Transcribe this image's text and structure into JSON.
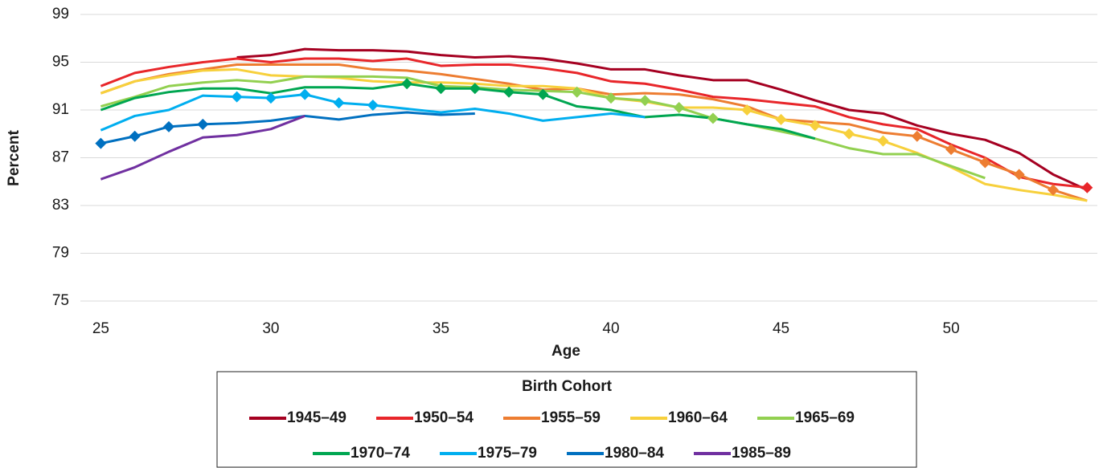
{
  "chart_data": {
    "type": "line",
    "x_label": "Age",
    "y_label": "Percent",
    "legend_title": "Birth Cohort",
    "x": [
      25,
      26,
      27,
      28,
      29,
      30,
      31,
      32,
      33,
      34,
      35,
      36,
      37,
      38,
      39,
      40,
      41,
      42,
      43,
      44,
      45,
      46,
      47,
      48,
      49,
      50,
      51,
      52,
      53,
      54
    ],
    "xlim": [
      24.4,
      54.3
    ],
    "xticks": [
      25,
      30,
      35,
      40,
      45,
      50
    ],
    "ylim": [
      75,
      99
    ],
    "yticks": [
      75,
      79,
      83,
      87,
      91,
      95,
      99
    ],
    "grid": true,
    "series": [
      {
        "name": "1945–49",
        "color": "#a50021",
        "values": [
          null,
          null,
          null,
          null,
          95.4,
          95.6,
          96.1,
          96.0,
          96.0,
          95.9,
          95.6,
          95.4,
          95.5,
          95.3,
          94.9,
          94.4,
          94.4,
          93.9,
          93.5,
          93.5,
          92.7,
          91.8,
          91.0,
          90.7,
          89.7,
          89.0,
          88.5,
          87.4,
          85.6,
          84.3
        ],
        "marker_x": []
      },
      {
        "name": "1950–54",
        "color": "#e8262a",
        "values": [
          93.0,
          94.1,
          94.6,
          95.0,
          95.3,
          95.0,
          95.3,
          95.3,
          95.1,
          95.3,
          94.7,
          94.8,
          94.8,
          94.5,
          94.1,
          93.4,
          93.2,
          92.7,
          92.1,
          91.9,
          91.6,
          91.3,
          90.4,
          89.8,
          89.4,
          88.1,
          87.0,
          85.4,
          84.8,
          84.5
        ],
        "marker_x": [
          54
        ]
      },
      {
        "name": "1955–59",
        "color": "#ed7d31",
        "values": [
          92.4,
          93.4,
          94.0,
          94.4,
          94.8,
          94.8,
          94.8,
          94.8,
          94.4,
          94.3,
          94.0,
          93.6,
          93.2,
          92.7,
          92.8,
          92.3,
          92.4,
          92.3,
          91.9,
          91.3,
          90.2,
          90.0,
          89.8,
          89.1,
          88.8,
          87.7,
          86.6,
          85.6,
          84.3,
          83.4
        ],
        "marker_x": [
          49,
          50,
          51,
          52,
          53
        ]
      },
      {
        "name": "1960–64",
        "color": "#f7d03c",
        "values": [
          92.4,
          93.4,
          93.9,
          94.3,
          94.4,
          93.9,
          93.8,
          93.7,
          93.4,
          93.3,
          93.3,
          93.2,
          93.0,
          93.0,
          92.8,
          92.0,
          91.7,
          91.2,
          91.2,
          91.0,
          90.2,
          89.7,
          89.0,
          88.4,
          87.4,
          86.2,
          84.8,
          84.3,
          83.9,
          83.4
        ],
        "marker_x": [
          44,
          45,
          46,
          47,
          48
        ]
      },
      {
        "name": "1965–69",
        "color": "#92d050",
        "values": [
          91.3,
          92.1,
          93.0,
          93.3,
          93.5,
          93.3,
          93.8,
          93.8,
          93.8,
          93.7,
          93.0,
          92.9,
          92.7,
          92.6,
          92.5,
          92.0,
          91.8,
          91.2,
          90.3,
          89.8,
          89.2,
          88.6,
          87.8,
          87.3,
          87.3,
          86.3,
          85.3,
          null,
          null,
          null
        ],
        "marker_x": [
          39,
          40,
          41,
          42,
          43
        ]
      },
      {
        "name": "1970–74",
        "color": "#00a651",
        "values": [
          91.0,
          92.0,
          92.5,
          92.8,
          92.8,
          92.4,
          92.9,
          92.9,
          92.8,
          93.2,
          92.8,
          92.8,
          92.5,
          92.3,
          91.3,
          91.0,
          90.4,
          90.6,
          90.3,
          89.8,
          89.4,
          88.6,
          null,
          null,
          null,
          null,
          null,
          null,
          null,
          null
        ],
        "marker_x": [
          34,
          35,
          36,
          37,
          38
        ]
      },
      {
        "name": "1975–79",
        "color": "#00aeef",
        "values": [
          89.3,
          90.5,
          91.0,
          92.2,
          92.1,
          92.0,
          92.3,
          91.6,
          91.4,
          91.1,
          90.8,
          91.1,
          90.7,
          90.1,
          90.4,
          90.7,
          90.4,
          null,
          null,
          null,
          null,
          null,
          null,
          null,
          null,
          null,
          null,
          null,
          null,
          null
        ],
        "marker_x": [
          29,
          30,
          31,
          32,
          33
        ]
      },
      {
        "name": "1980–84",
        "color": "#0070c0",
        "values": [
          88.2,
          88.8,
          89.6,
          89.8,
          89.9,
          90.1,
          90.5,
          90.2,
          90.6,
          90.8,
          90.6,
          90.7,
          null,
          null,
          null,
          null,
          null,
          null,
          null,
          null,
          null,
          null,
          null,
          null,
          null,
          null,
          null,
          null,
          null,
          null
        ],
        "marker_x": [
          25,
          26,
          27,
          28
        ]
      },
      {
        "name": "1985–89",
        "color": "#7030a0",
        "values": [
          85.2,
          86.2,
          87.5,
          88.7,
          88.9,
          89.4,
          90.5,
          null,
          null,
          null,
          null,
          null,
          null,
          null,
          null,
          null,
          null,
          null,
          null,
          null,
          null,
          null,
          null,
          null,
          null,
          null,
          null,
          null,
          null,
          null
        ],
        "marker_x": []
      }
    ]
  }
}
